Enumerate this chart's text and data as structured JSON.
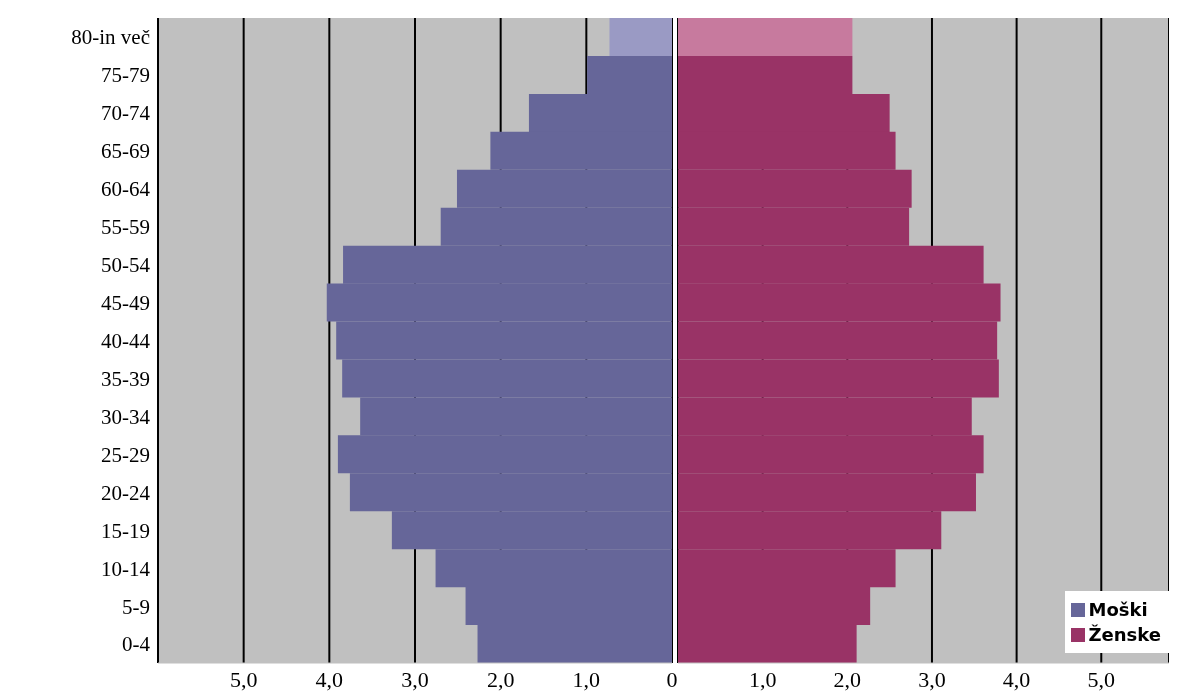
{
  "chart_data": [
    {
      "type": "bar",
      "orientation": "horizontal",
      "categories": [
        "80-in več",
        "75-79",
        "70-74",
        "65-69",
        "60-64",
        "55-59",
        "50-54",
        "45-49",
        "40-44",
        "35-39",
        "30-34",
        "25-29",
        "20-24",
        "15-19",
        "10-14",
        "5-9",
        "0-4"
      ],
      "series": [
        {
          "name": "Moški",
          "color": "#666699",
          "colors": [
            "#9a9ac4",
            "#666699",
            "#666699",
            "#666699",
            "#666699",
            "#666699",
            "#666699",
            "#666699",
            "#666699",
            "#666699",
            "#666699",
            "#666699",
            "#666699",
            "#666699",
            "#666699",
            "#666699",
            "#666699"
          ],
          "values": [
            0.73,
            0.99,
            1.67,
            2.12,
            2.51,
            2.7,
            3.84,
            4.03,
            3.92,
            3.85,
            3.64,
            3.9,
            3.76,
            3.27,
            2.76,
            2.41,
            2.27
          ]
        }
      ],
      "xlim": [
        6,
        0
      ],
      "xticks": [
        {
          "value": 5,
          "label": "5,0"
        },
        {
          "value": 4,
          "label": "4,0"
        },
        {
          "value": 3,
          "label": "3,0"
        },
        {
          "value": 2,
          "label": "2,0"
        },
        {
          "value": 1,
          "label": "1,0"
        },
        0
      ],
      "grid": "x"
    },
    {
      "type": "bar",
      "orientation": "horizontal",
      "series": [
        {
          "name": "Ženske",
          "color": "#993366",
          "colors": [
            "#c77a9e",
            "#993366",
            "#993366",
            "#993366",
            "#993366",
            "#993366",
            "#993366",
            "#993366",
            "#993366",
            "#993366",
            "#993366",
            "#993366",
            "#993366",
            "#993366",
            "#993366",
            "#993366",
            "#993366"
          ],
          "values": [
            2.06,
            2.06,
            2.5,
            2.57,
            2.76,
            2.73,
            3.61,
            3.81,
            3.77,
            3.79,
            3.47,
            3.61,
            3.52,
            3.11,
            2.57,
            2.27,
            2.11
          ]
        }
      ],
      "xlim": [
        0,
        5.8
      ],
      "xticks": [
        {
          "value": 1,
          "label": "1,0"
        },
        {
          "value": 2,
          "label": "2,0"
        },
        {
          "value": 3,
          "label": "3,0"
        },
        {
          "value": 4,
          "label": "4,0"
        },
        {
          "value": 5,
          "label": "5,0"
        }
      ],
      "grid": "x",
      "legend": "bottom right",
      "tick_labels": "x"
    }
  ]
}
